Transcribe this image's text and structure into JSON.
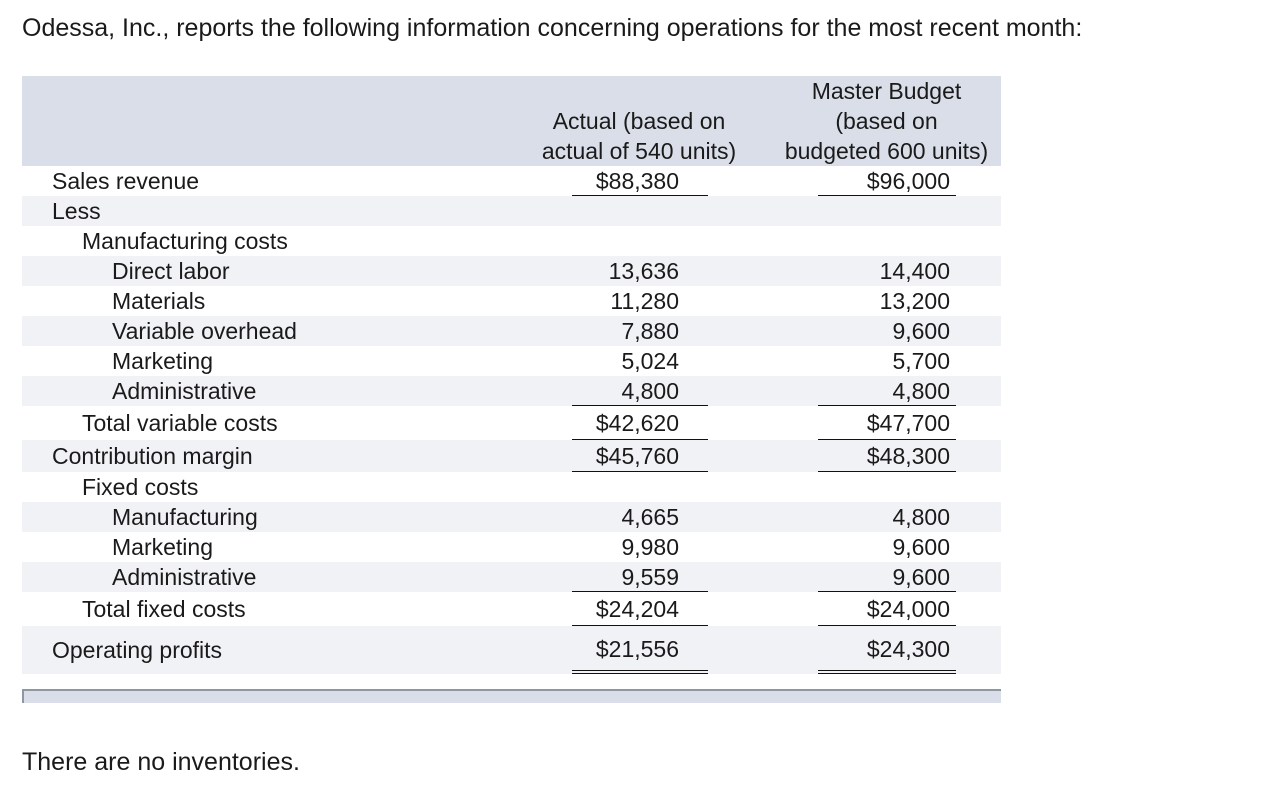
{
  "intro": "Odessa, Inc., reports the following information concerning operations for the most recent month:",
  "headers": {
    "actual": [
      "Actual (based on",
      "actual of 540 units)"
    ],
    "budget": [
      "Master Budget",
      "(based on",
      "budgeted 600 units)"
    ]
  },
  "rows": {
    "sales_revenue": {
      "label": "Sales revenue",
      "actual": "$88,380",
      "budget": "$96,000"
    },
    "less": {
      "label": "Less"
    },
    "manufacturing_costs": {
      "label": "Manufacturing costs"
    },
    "direct_labor": {
      "label": "Direct labor",
      "actual": "13,636",
      "budget": "14,400"
    },
    "materials": {
      "label": "Materials",
      "actual": "11,280",
      "budget": "13,200"
    },
    "variable_overhead": {
      "label": "Variable overhead",
      "actual": "7,880",
      "budget": "9,600"
    },
    "marketing_var": {
      "label": "Marketing",
      "actual": "5,024",
      "budget": "5,700"
    },
    "administrative_var": {
      "label": "Administrative",
      "actual": "4,800",
      "budget": "4,800"
    },
    "total_variable": {
      "label": "Total variable costs",
      "actual": "$42,620",
      "budget": "$47,700"
    },
    "contribution_margin": {
      "label": "Contribution margin",
      "actual": "$45,760",
      "budget": "$48,300"
    },
    "fixed_costs": {
      "label": "Fixed costs"
    },
    "manufacturing_fixed": {
      "label": "Manufacturing",
      "actual": "4,665",
      "budget": "4,800"
    },
    "marketing_fixed": {
      "label": "Marketing",
      "actual": "9,980",
      "budget": "9,600"
    },
    "administrative_fixed": {
      "label": "Administrative",
      "actual": "9,559",
      "budget": "9,600"
    },
    "total_fixed": {
      "label": "Total fixed costs",
      "actual": "$24,204",
      "budget": "$24,000"
    },
    "operating_profits": {
      "label": "Operating profits",
      "actual": "$21,556",
      "budget": "$24,300"
    }
  },
  "note": "There are no inventories."
}
